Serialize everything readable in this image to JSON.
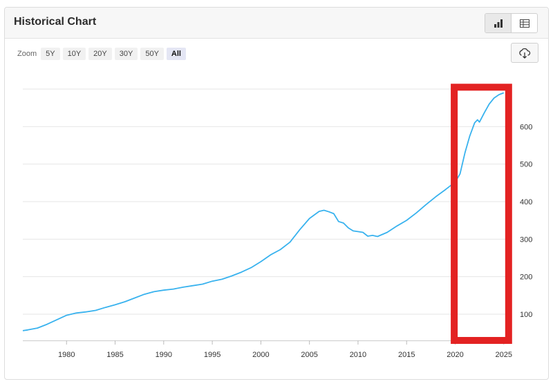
{
  "header": {
    "title": "Historical Chart",
    "view_icons": [
      "bar-chart-icon",
      "table-icon"
    ]
  },
  "zoom": {
    "label": "Zoom",
    "options": [
      "5Y",
      "10Y",
      "20Y",
      "30Y",
      "50Y",
      "All"
    ],
    "selected": "All"
  },
  "download_icon": "cloud-download-icon",
  "colors": {
    "line": "#38b2ee",
    "highlight": "#e32222",
    "grid": "#e6e6e6"
  },
  "chart_data": {
    "type": "line",
    "title": "",
    "xlabel": "",
    "ylabel": "",
    "xlim": [
      1975.5,
      2025.3
    ],
    "ylim": [
      30,
      700
    ],
    "x_ticks": [
      1980,
      1985,
      1990,
      1995,
      2000,
      2005,
      2010,
      2015,
      2020,
      2025
    ],
    "y_ticks": [
      100,
      200,
      300,
      400,
      500,
      600
    ],
    "grid": "horizontal",
    "y_axis_position": "right",
    "series": [
      {
        "x": [
          1975.5,
          1976,
          1977,
          1978,
          1979,
          1980,
          1981,
          1982,
          1983,
          1984,
          1985,
          1986,
          1987,
          1988,
          1989,
          1990,
          1991,
          1992,
          1993,
          1994,
          1995,
          1996,
          1997,
          1998,
          1999,
          2000,
          2001,
          2002,
          2003,
          2004,
          2005,
          2006,
          2006.5,
          2007,
          2007.5,
          2008,
          2008.5,
          2009,
          2009.5,
          2010,
          2010.5,
          2011,
          2011.5,
          2012,
          2013,
          2014,
          2015,
          2016,
          2017,
          2018,
          2019,
          2020,
          2020.5,
          2021,
          2021.5,
          2022,
          2022.3,
          2022.5,
          2023,
          2023.5,
          2024,
          2024.5,
          2025
        ],
        "values": [
          56,
          58,
          63,
          73,
          85,
          97,
          103,
          106,
          110,
          118,
          125,
          133,
          143,
          153,
          160,
          164,
          167,
          172,
          176,
          180,
          188,
          193,
          202,
          212,
          224,
          240,
          258,
          272,
          292,
          325,
          355,
          374,
          377,
          373,
          368,
          347,
          343,
          330,
          322,
          320,
          318,
          308,
          310,
          307,
          318,
          335,
          350,
          370,
          392,
          413,
          432,
          452,
          474,
          530,
          575,
          610,
          618,
          612,
          637,
          660,
          676,
          685,
          690
        ]
      }
    ],
    "annotations": [
      {
        "type": "rectangle",
        "x_range": [
          2019.9,
          2025.5
        ],
        "y_range": [
          30,
          705
        ],
        "color": "#e32222"
      }
    ]
  }
}
